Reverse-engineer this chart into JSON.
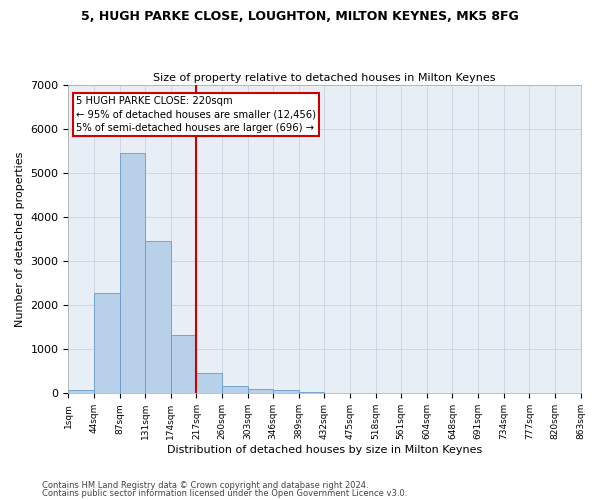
{
  "title_line1": "5, HUGH PARKE CLOSE, LOUGHTON, MILTON KEYNES, MK5 8FG",
  "title_line2": "Size of property relative to detached houses in Milton Keynes",
  "xlabel": "Distribution of detached houses by size in Milton Keynes",
  "ylabel": "Number of detached properties",
  "bin_labels": [
    "1sqm",
    "44sqm",
    "87sqm",
    "131sqm",
    "174sqm",
    "217sqm",
    "260sqm",
    "303sqm",
    "346sqm",
    "389sqm",
    "432sqm",
    "475sqm",
    "518sqm",
    "561sqm",
    "604sqm",
    "648sqm",
    "691sqm",
    "734sqm",
    "777sqm",
    "820sqm",
    "863sqm"
  ],
  "bar_heights": [
    80,
    2280,
    5450,
    3450,
    1320,
    460,
    160,
    100,
    65,
    30,
    0,
    0,
    0,
    0,
    0,
    0,
    0,
    0,
    0,
    0
  ],
  "bar_color": "#b8d0e8",
  "bar_edge_color": "#6699cc",
  "vline_x": 5.0,
  "vline_color": "#cc0000",
  "annotation_text": "5 HUGH PARKE CLOSE: 220sqm\n← 95% of detached houses are smaller (12,456)\n5% of semi-detached houses are larger (696) →",
  "annotation_box_color": "#cc0000",
  "ylim": [
    0,
    7000
  ],
  "yticks": [
    0,
    1000,
    2000,
    3000,
    4000,
    5000,
    6000,
    7000
  ],
  "grid_color": "#c8d4e4",
  "background_color": "#e8eef6",
  "fig_background": "#ffffff",
  "footer_line1": "Contains HM Land Registry data © Crown copyright and database right 2024.",
  "footer_line2": "Contains public sector information licensed under the Open Government Licence v3.0."
}
